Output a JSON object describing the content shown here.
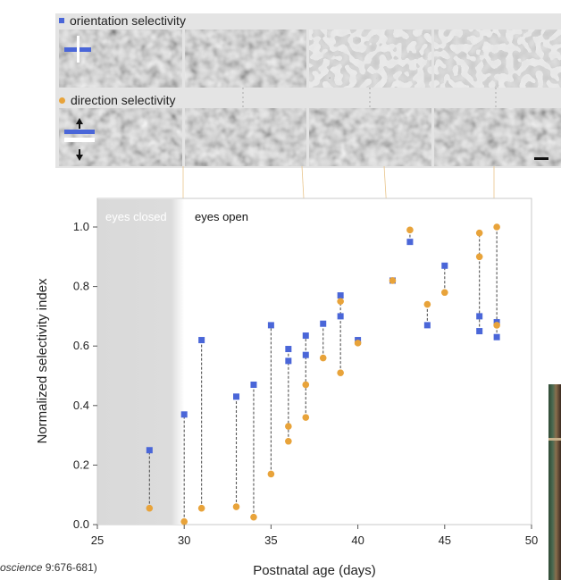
{
  "panels": {
    "orientation_label": "orientation selectivity",
    "direction_label": "direction selectivity",
    "colors": {
      "orientation": "#4a66d8",
      "direction": "#e8a33a"
    }
  },
  "citation": {
    "journal": "oscience",
    "rest": " 9:676-681)"
  },
  "chart_data": {
    "type": "scatter",
    "xlabel": "Postnatal age (days)",
    "ylabel": "Normalized selectivity index",
    "xlim": [
      25,
      50
    ],
    "ylim": [
      0,
      1.05
    ],
    "xticks": [
      25,
      30,
      35,
      40,
      45,
      50
    ],
    "yticks": [
      0.0,
      0.2,
      0.4,
      0.6,
      0.8,
      1.0
    ],
    "region_labels": {
      "eyes_closed": "eyes closed",
      "eyes_open": "eyes open"
    },
    "eyes_closed_range": [
      25,
      30
    ],
    "series": [
      {
        "name": "orientation selectivity",
        "marker": "square",
        "color": "#4a66d8",
        "points": [
          [
            28,
            0.25
          ],
          [
            30,
            0.37
          ],
          [
            31,
            0.62
          ],
          [
            33,
            0.43
          ],
          [
            34,
            0.47
          ],
          [
            35,
            0.67
          ],
          [
            36,
            0.59
          ],
          [
            36,
            0.55
          ],
          [
            37,
            0.635
          ],
          [
            37,
            0.57
          ],
          [
            38,
            0.675
          ],
          [
            39,
            0.77
          ],
          [
            39,
            0.7
          ],
          [
            40,
            0.62
          ],
          [
            42,
            0.82
          ],
          [
            43,
            0.95
          ],
          [
            44,
            0.67
          ],
          [
            45,
            0.87
          ],
          [
            47,
            0.7
          ],
          [
            47,
            0.65
          ],
          [
            48,
            0.68
          ],
          [
            48,
            0.63
          ]
        ]
      },
      {
        "name": "direction selectivity",
        "marker": "circle",
        "color": "#e8a33a",
        "points": [
          [
            28,
            0.055
          ],
          [
            30,
            0.01
          ],
          [
            31,
            0.055
          ],
          [
            33,
            0.06
          ],
          [
            34,
            0.025
          ],
          [
            35,
            0.17
          ],
          [
            36,
            0.33
          ],
          [
            36,
            0.28
          ],
          [
            37,
            0.47
          ],
          [
            37,
            0.36
          ],
          [
            38,
            0.56
          ],
          [
            39,
            0.75
          ],
          [
            39,
            0.51
          ],
          [
            40,
            0.61
          ],
          [
            42,
            0.82
          ],
          [
            43,
            0.99
          ],
          [
            44,
            0.74
          ],
          [
            45,
            0.78
          ],
          [
            47,
            0.98
          ],
          [
            47,
            0.9
          ],
          [
            48,
            1.0
          ],
          [
            48,
            0.67
          ]
        ]
      }
    ],
    "connectors": [
      [
        28,
        0.055,
        0.25
      ],
      [
        30,
        0.01,
        0.37
      ],
      [
        31,
        0.055,
        0.62
      ],
      [
        33,
        0.06,
        0.43
      ],
      [
        34,
        0.025,
        0.47
      ],
      [
        35,
        0.17,
        0.67
      ],
      [
        36,
        0.28,
        0.59
      ],
      [
        37,
        0.36,
        0.635
      ],
      [
        38,
        0.56,
        0.675
      ],
      [
        39,
        0.51,
        0.77
      ],
      [
        43,
        0.95,
        0.99
      ],
      [
        44,
        0.67,
        0.74
      ],
      [
        45,
        0.78,
        0.87
      ],
      [
        47,
        0.65,
        0.98
      ],
      [
        48,
        0.63,
        1.0
      ]
    ]
  }
}
